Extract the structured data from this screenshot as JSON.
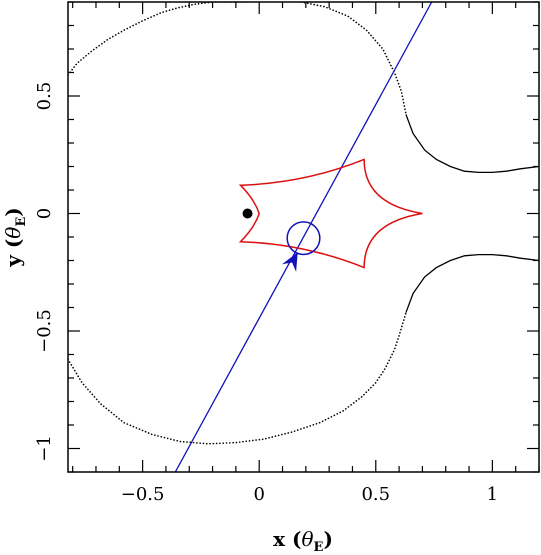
{
  "chart_data": {
    "type": "line",
    "xlabel_main": "x",
    "xlabel_unit_symbol": "θ",
    "xlabel_unit_sub": "E",
    "ylabel_main": "y",
    "ylabel_unit_symbol": "θ",
    "ylabel_unit_sub": "E",
    "xlim": [
      -0.82,
      1.2
    ],
    "ylim": [
      -1.1,
      0.9
    ],
    "x_ticks": [
      {
        "value": -0.5,
        "label": "−0.5"
      },
      {
        "value": 0,
        "label": "0"
      },
      {
        "value": 0.5,
        "label": "0.5"
      },
      {
        "value": 1,
        "label": "1"
      }
    ],
    "y_ticks": [
      {
        "value": -1,
        "label": "−1"
      },
      {
        "value": -0.5,
        "label": "−0.5"
      },
      {
        "value": 0,
        "label": "0"
      },
      {
        "value": 0.5,
        "label": "0.5"
      }
    ],
    "grid": false,
    "legend": "none",
    "colors": {
      "critical_curve": "#000000",
      "caustic": "#dd1111",
      "trajectory": "#1111bb",
      "source": "#1111bb",
      "lens": "#000000"
    },
    "series": [
      {
        "style": "dotted",
        "color": "#000000",
        "x": [
          -0.82,
          -0.76,
          -0.68,
          -0.58,
          -0.46,
          -0.34,
          -0.22,
          -0.1,
          0.02,
          0.14,
          0.26,
          0.36,
          0.44,
          0.5,
          0.54,
          0.58,
          0.6,
          0.63
        ],
        "y": [
          -0.62,
          -0.72,
          -0.81,
          -0.89,
          -0.94,
          -0.97,
          -0.98,
          -0.975,
          -0.96,
          -0.93,
          -0.89,
          -0.84,
          -0.78,
          -0.72,
          -0.66,
          -0.58,
          -0.52,
          -0.42
        ]
      },
      {
        "style": "solid",
        "color": "#000000",
        "x": [
          0.63,
          0.66,
          0.71,
          0.76,
          0.82,
          0.88,
          0.94,
          1.0,
          1.06,
          1.12,
          1.2
        ],
        "y": [
          -0.42,
          -0.34,
          -0.27,
          -0.23,
          -0.2,
          -0.18,
          -0.175,
          -0.175,
          -0.18,
          -0.19,
          -0.2
        ]
      },
      {
        "style": "dotted",
        "color": "#000000",
        "x": [
          -0.82,
          -0.78,
          -0.72,
          -0.65,
          -0.58,
          -0.5,
          -0.42,
          -0.35,
          -0.28,
          -0.2,
          -0.12,
          -0.05
        ],
        "y": [
          0.59,
          0.64,
          0.69,
          0.74,
          0.78,
          0.82,
          0.855,
          0.875,
          0.89,
          0.9,
          0.9,
          0.9
        ]
      },
      {
        "style": "dotted",
        "color": "#000000",
        "x": [
          0.18,
          0.28,
          0.38,
          0.46,
          0.53,
          0.58,
          0.61,
          0.63
        ],
        "y": [
          0.9,
          0.88,
          0.84,
          0.78,
          0.7,
          0.6,
          0.52,
          0.42
        ]
      },
      {
        "style": "solid",
        "color": "#000000",
        "x": [
          0.63,
          0.66,
          0.71,
          0.76,
          0.82,
          0.88,
          0.94,
          1.0,
          1.06,
          1.12,
          1.2
        ],
        "y": [
          0.42,
          0.34,
          0.27,
          0.23,
          0.2,
          0.18,
          0.175,
          0.175,
          0.18,
          0.19,
          0.2
        ]
      },
      {
        "style": "solid",
        "color": "#1111bb",
        "x": [
          -0.36,
          0.74
        ],
        "y": [
          -1.1,
          0.9
        ]
      }
    ],
    "caustic": {
      "vertices": [
        {
          "x": -0.08,
          "y": 0.12
        },
        {
          "x": 0.45,
          "y": 0.23
        },
        {
          "x": 0.7,
          "y": 0.0
        },
        {
          "x": 0.45,
          "y": -0.23
        },
        {
          "x": -0.08,
          "y": -0.12
        },
        {
          "x": 0.0,
          "y": 0.0
        }
      ],
      "controls": [
        {
          "x": 0.2,
          "y": 0.13
        },
        {
          "x": 0.45,
          "y": 0.04
        },
        {
          "x": 0.45,
          "y": -0.04
        },
        {
          "x": 0.2,
          "y": -0.13
        },
        {
          "x": -0.02,
          "y": -0.06
        },
        {
          "x": -0.02,
          "y": 0.06
        }
      ]
    },
    "source_circle": {
      "x": 0.19,
      "y": -0.105,
      "r": 0.07
    },
    "lens_point": {
      "x": -0.05,
      "y": 0.0
    },
    "arrow": {
      "x": 0.165,
      "y": -0.165,
      "dx": 0.55,
      "dy": 1.0
    }
  }
}
